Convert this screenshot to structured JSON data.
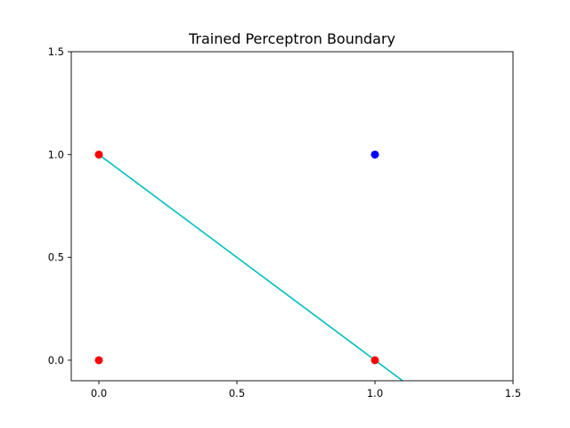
{
  "chart_data": {
    "type": "scatter",
    "title": "Trained Perceptron Boundary",
    "xlabel": "",
    "ylabel": "",
    "xlim": [
      -0.1,
      1.5
    ],
    "ylim": [
      -0.1,
      1.5
    ],
    "xticks": [
      0.0,
      0.5,
      1.0,
      1.5
    ],
    "xtick_labels": [
      "0.0",
      "0.5",
      "1.0",
      "1.5"
    ],
    "yticks": [
      0.0,
      0.5,
      1.0,
      1.5
    ],
    "ytick_labels": [
      "0.0",
      "0.5",
      "1.0",
      "1.5"
    ],
    "grid": false,
    "legend": false,
    "points": [
      {
        "x": 0,
        "y": 0,
        "color": "#ff0000"
      },
      {
        "x": 0,
        "y": 1,
        "color": "#ff0000"
      },
      {
        "x": 1,
        "y": 0,
        "color": "#ff0000"
      },
      {
        "x": 1,
        "y": 1,
        "color": "#0000ff"
      }
    ],
    "boundary_line": {
      "color": "#00bfbf",
      "x": [
        0,
        1.1
      ],
      "y": [
        1,
        -0.1
      ]
    }
  }
}
